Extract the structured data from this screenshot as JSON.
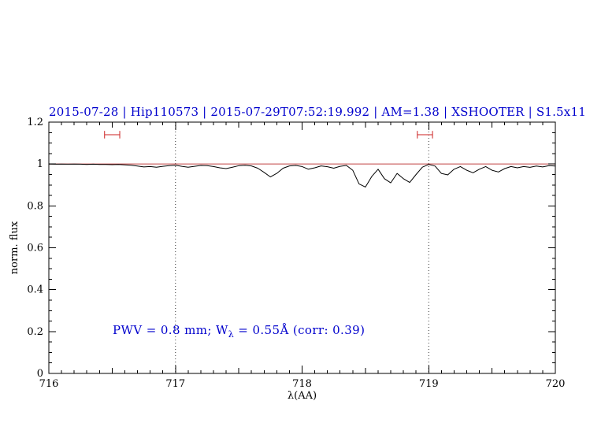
{
  "chart_data": {
    "type": "line",
    "title": "2015-07-28 | Hip110573 | 2015-07-29T07:52:19.992 | AM=1.38 | XSHOOTER | S1.5x11",
    "title_color": "#0000cd",
    "xlabel": "λ(AA)",
    "ylabel": "norm. flux",
    "xlim": [
      716,
      720
    ],
    "ylim": [
      0,
      1.2
    ],
    "x_ticks": [
      716,
      717,
      718,
      719,
      720
    ],
    "x_tick_labels": [
      "716",
      "717",
      "718",
      "719",
      "720"
    ],
    "y_ticks": [
      0,
      0.2,
      0.4,
      0.6,
      0.8,
      1,
      1.2
    ],
    "y_tick_labels": [
      "0",
      "0.2",
      "0.4",
      "0.6",
      "0.8",
      "1",
      "1.2"
    ],
    "x_minor_step": 0.1,
    "y_minor_step": 0.05,
    "grid": "off",
    "legend": "none",
    "dotted_vlines": [
      717,
      719
    ],
    "continuum": {
      "y": 1.0,
      "color": "#c04040"
    },
    "marker_color": "#cc2222",
    "range_markers": [
      {
        "x": 716.5,
        "half_width": 0.06,
        "y": 1.14,
        "cap_half_height": 0.018
      },
      {
        "x": 718.97,
        "half_width": 0.06,
        "y": 1.14,
        "cap_half_height": 0.018
      }
    ],
    "annotation": {
      "prefix": "PWV = 0.8 mm; W",
      "sub": "λ",
      "suffix": " = 0.55Å (corr: 0.39)",
      "x": 716.5,
      "y": 0.2,
      "color": "#0000cd"
    },
    "series": [
      {
        "name": "spectrum",
        "color": "#000000",
        "x_start": 716.0,
        "x_step": 0.05,
        "y": [
          1.0,
          0.999,
          1.0,
          0.999,
          1.0,
          0.999,
          0.998,
          0.999,
          0.998,
          0.998,
          0.997,
          0.998,
          0.996,
          0.994,
          0.99,
          0.986,
          0.988,
          0.985,
          0.989,
          0.992,
          0.994,
          0.989,
          0.985,
          0.989,
          0.993,
          0.992,
          0.988,
          0.982,
          0.978,
          0.985,
          0.992,
          0.994,
          0.991,
          0.98,
          0.96,
          0.938,
          0.955,
          0.98,
          0.991,
          0.993,
          0.988,
          0.975,
          0.982,
          0.991,
          0.987,
          0.98,
          0.989,
          0.993,
          0.97,
          0.905,
          0.89,
          0.94,
          0.975,
          0.93,
          0.91,
          0.955,
          0.93,
          0.912,
          0.95,
          0.985,
          0.998,
          0.99,
          0.955,
          0.948,
          0.975,
          0.988,
          0.97,
          0.958,
          0.975,
          0.988,
          0.97,
          0.962,
          0.978,
          0.988,
          0.982,
          0.988,
          0.984,
          0.99,
          0.986,
          0.992,
          0.99
        ]
      }
    ]
  }
}
